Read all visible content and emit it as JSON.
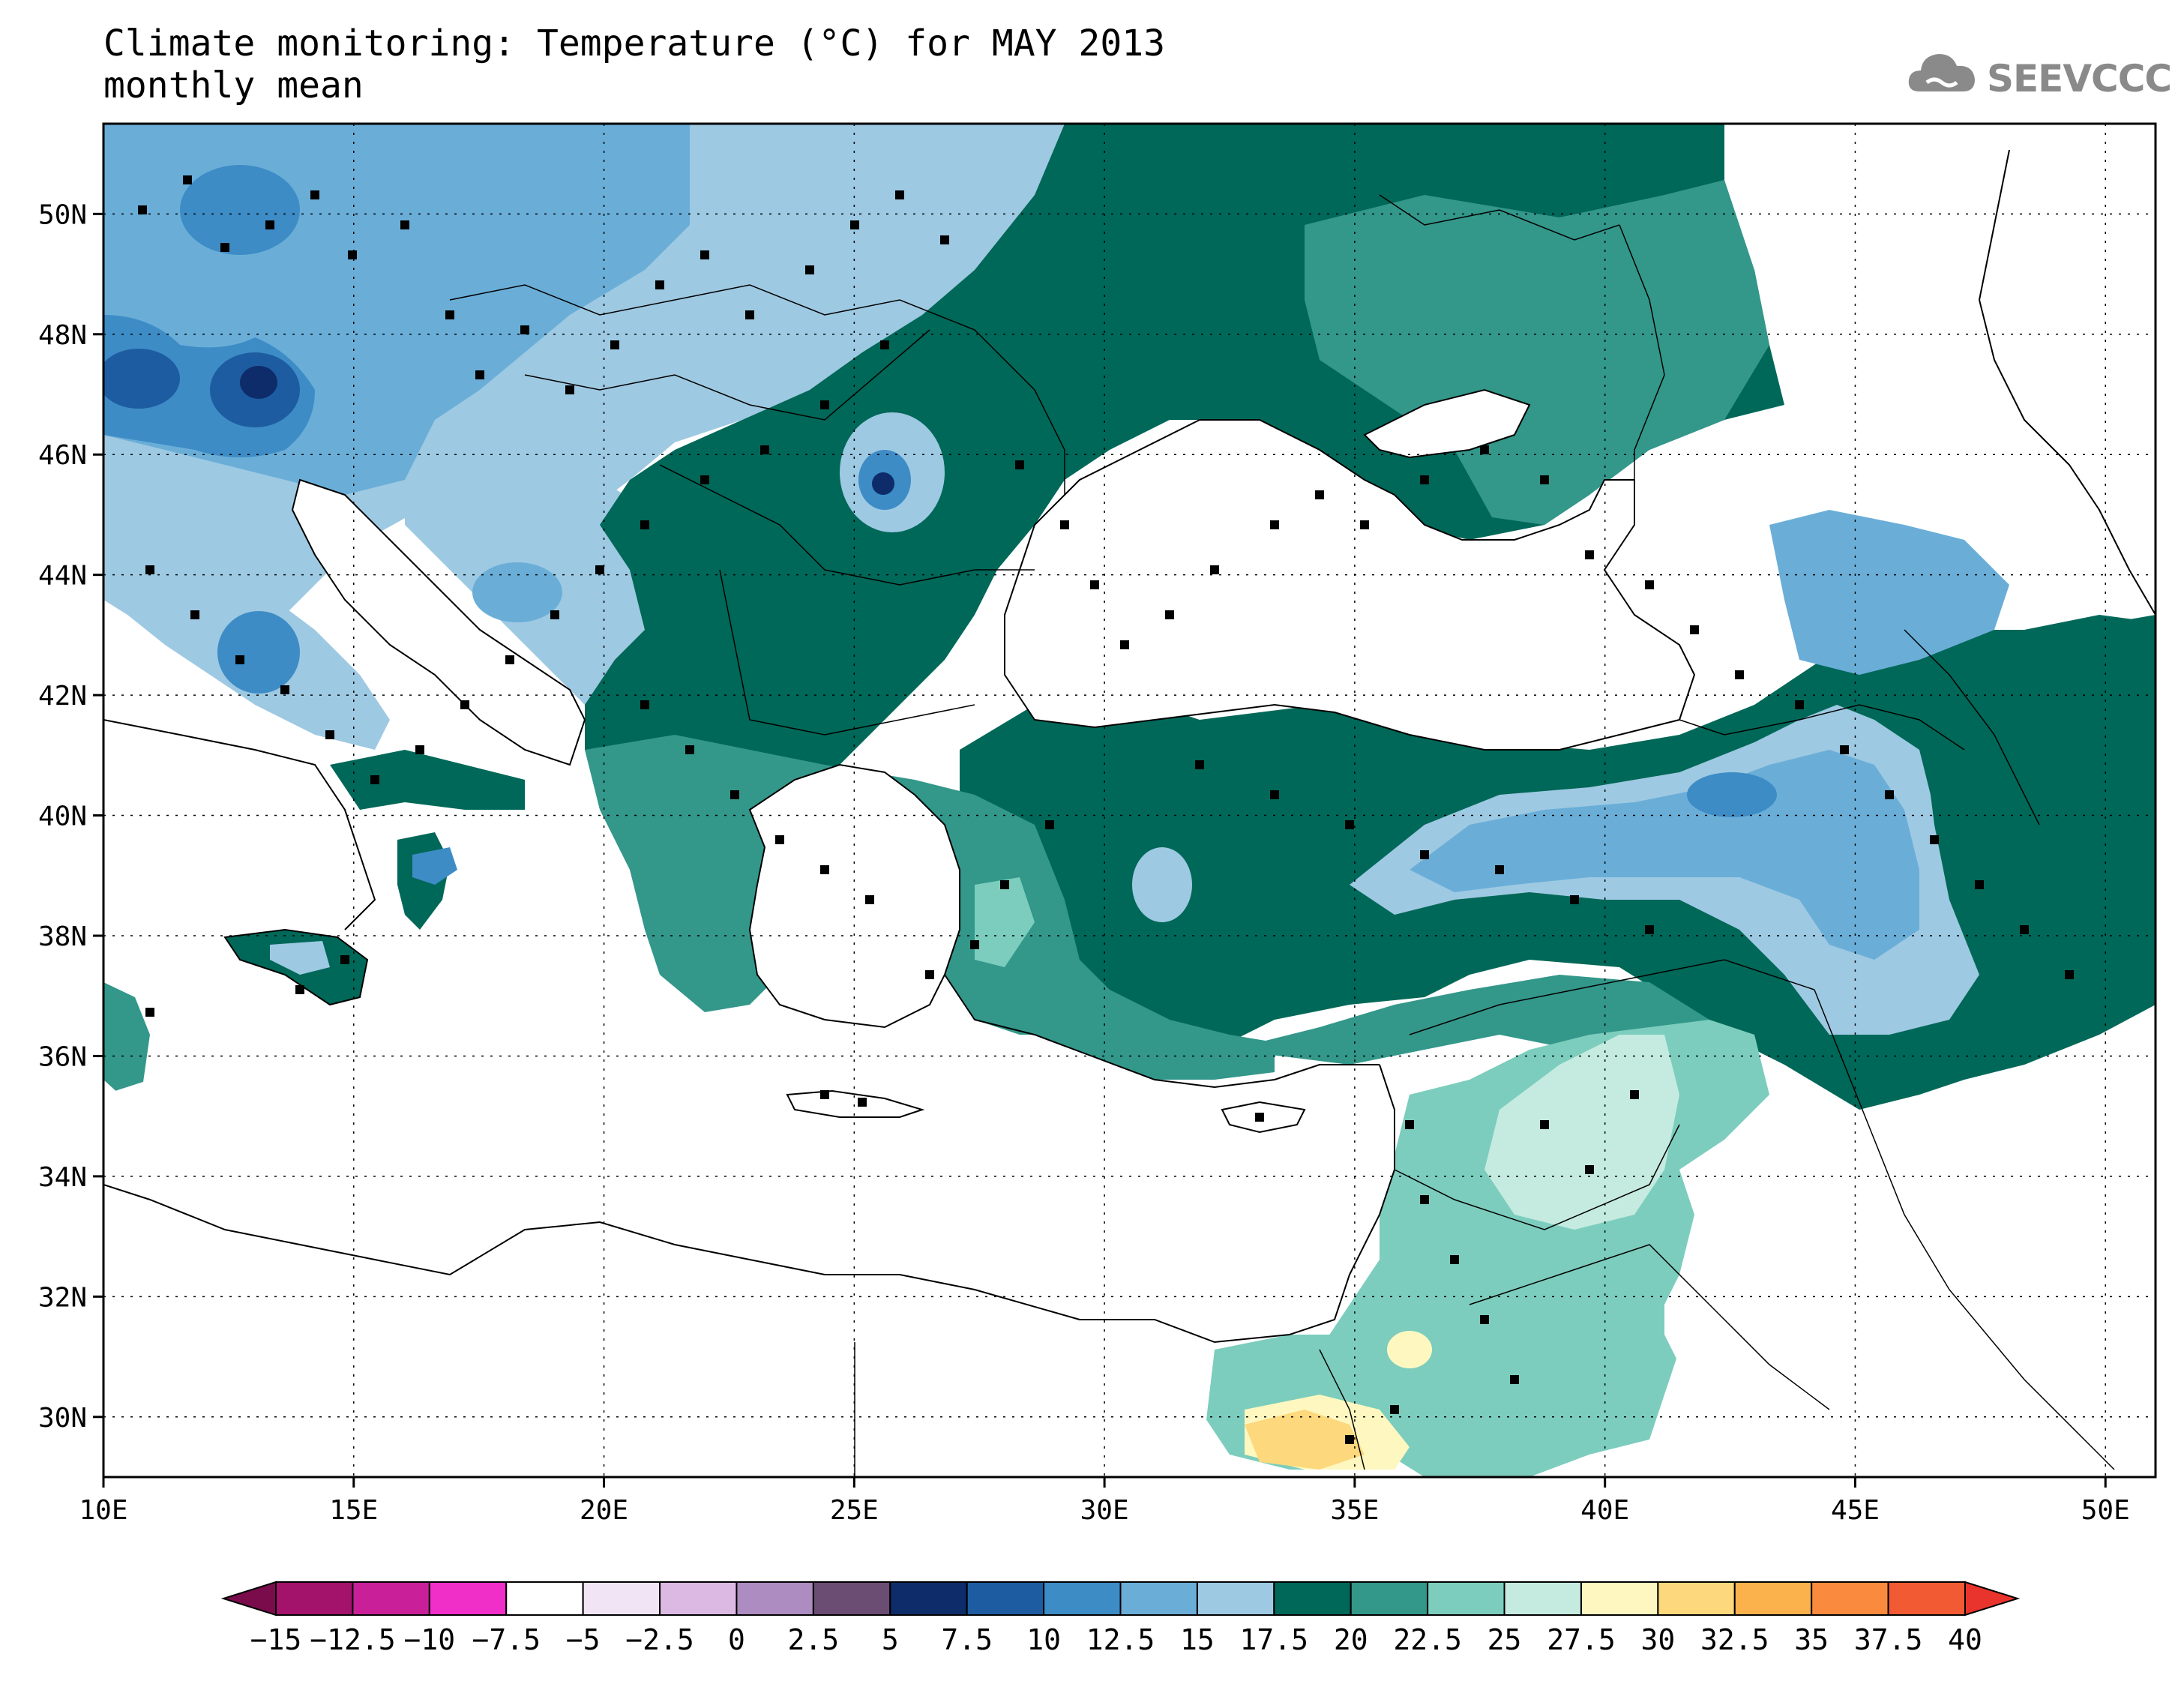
{
  "header": {
    "title_line1": "Climate monitoring: Temperature (°C) for MAY 2013",
    "title_line2": "monthly mean"
  },
  "logo": {
    "text": "SEEVCCC",
    "icon": "cloud-icon"
  },
  "map": {
    "lon_range": [
      10,
      51
    ],
    "lat_range": [
      29,
      51.5
    ],
    "lon_ticks": [
      "10E",
      "15E",
      "20E",
      "25E",
      "30E",
      "35E",
      "40E",
      "45E",
      "50E"
    ],
    "lat_ticks": [
      "30N",
      "32N",
      "34N",
      "36N",
      "38N",
      "40N",
      "42N",
      "44N",
      "46N",
      "48N",
      "50N"
    ]
  },
  "colorbar": {
    "labels": [
      "-15",
      "-12.5",
      "-10",
      "-7.5",
      "-5",
      "-2.5",
      "0",
      "2.5",
      "5",
      "7.5",
      "10",
      "12.5",
      "15",
      "17.5",
      "20",
      "22.5",
      "25",
      "27.5",
      "30",
      "32.5",
      "35",
      "37.5",
      "40"
    ],
    "colors": [
      "#7a0c4c",
      "#a3126b",
      "#c9209a",
      "#f02ec8",
      "#ffffff",
      "#f1e4f4",
      "#dbb9e3",
      "#ad8cc1",
      "#6b4c72",
      "#0e2c6a",
      "#1e5ca2",
      "#3d8cc6",
      "#6aaed8",
      "#9ec9e2",
      "#006858",
      "#33978a",
      "#7ccdbd",
      "#c5ebe0",
      "#fef8c0",
      "#fdd87c",
      "#fcb24c",
      "#f98a3e",
      "#f15a32",
      "#e8342c"
    ]
  },
  "colors": {
    "cold": "#6aaed8",
    "cool": "#9ec9e2",
    "mild": "#006858",
    "warm": "#33978a",
    "hot": "#7ccdbd"
  }
}
